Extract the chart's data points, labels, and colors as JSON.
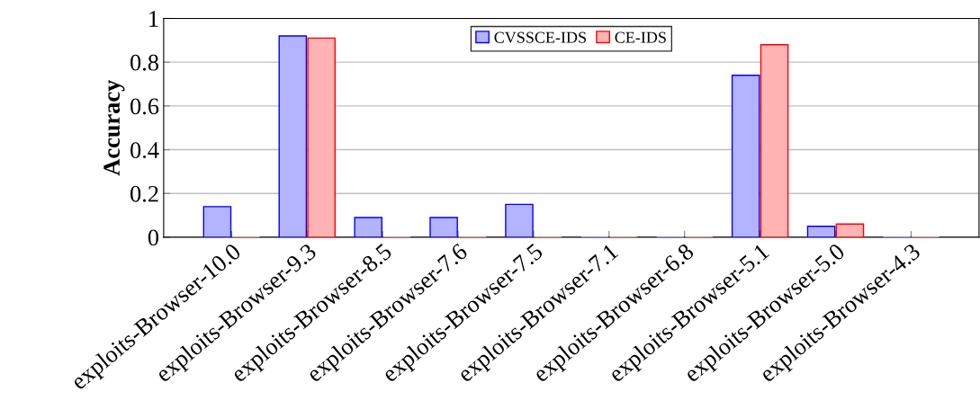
{
  "chart_data": {
    "type": "bar",
    "ylabel": "Accuracy",
    "categories": [
      "exploits-Browser-10.0",
      "exploits-Browser-9.3",
      "exploits-Browser-8.5",
      "exploits-Browser-7.6",
      "exploits-Browser-7.5",
      "exploits-Browser-7.1",
      "exploits-Browser-6.8",
      "exploits-Browser-5.1",
      "exploits-Browser-5.0",
      "exploits-Browser-4.3"
    ],
    "series": [
      {
        "name": "CVSSCE-IDS",
        "color": "#b3b3ff",
        "values": [
          0.14,
          0.92,
          0.09,
          0.09,
          0.15,
          0,
          0,
          0.74,
          0.05,
          0
        ]
      },
      {
        "name": "CE-IDS",
        "color": "#ffb3b3",
        "values": [
          0,
          0.91,
          0,
          0,
          0,
          0,
          0,
          0.88,
          0.06,
          0
        ]
      }
    ],
    "ylim": [
      0,
      1
    ],
    "yticks": [
      0,
      0.2,
      0.4,
      0.6,
      0.8,
      1
    ],
    "grid": "y",
    "legend": "top"
  }
}
